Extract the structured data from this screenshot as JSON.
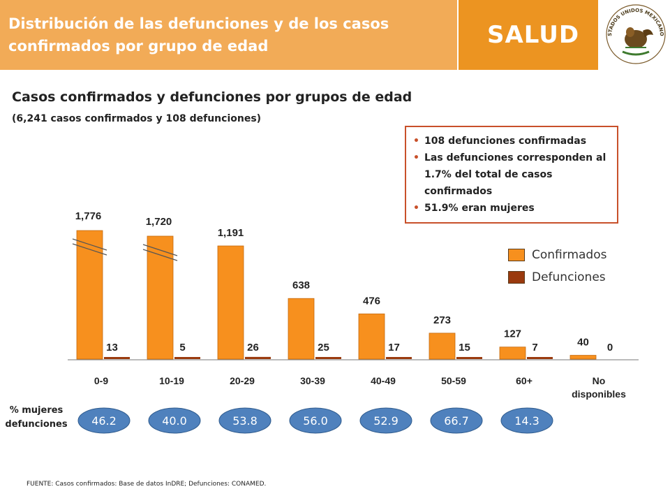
{
  "header": {
    "title": "Distribución de las defunciones y de los  casos confirmados por grupo de edad",
    "brand": "SALUD",
    "seal_text": "ESTADOS UNIDOS MEXICANOS"
  },
  "subtitle": "Casos confirmados y defunciones por grupos de edad",
  "subtitle2": "(6,241 casos confirmados y 108 defunciones)",
  "info_box": {
    "bullets": [
      "108 defunciones confirmadas",
      "Las defunciones corresponden al 1.7% del total de casos confirmados",
      "51.9% eran mujeres"
    ],
    "bullet_color": "#c8502a"
  },
  "pct_label": "% mujeres defunciones",
  "source": "FUENTE: Casos confirmados: Base de datos InDRE; Defunciones: CONAMED.",
  "chart_data": {
    "type": "bar",
    "categories": [
      "0-9",
      "10-19",
      "20-29",
      "30-39",
      "40-49",
      "50-59",
      "60+",
      "No disponibles"
    ],
    "series": [
      {
        "name": "Confirmados",
        "values": [
          1776,
          1720,
          1191,
          638,
          476,
          273,
          127,
          40
        ],
        "labels": [
          "1,776",
          "1,720",
          "1,191",
          "638",
          "476",
          "273",
          "127",
          "40"
        ],
        "color": "#f7901e"
      },
      {
        "name": "Defunciones",
        "values": [
          13,
          5,
          26,
          25,
          17,
          15,
          7,
          0
        ],
        "labels": [
          "13",
          "5",
          "26",
          "25",
          "17",
          "15",
          "7",
          "0"
        ],
        "color": "#9a3a0e"
      }
    ],
    "axis_breaks": [
      "0-9",
      "10-19"
    ],
    "pct_mujeres_defunciones": [
      "46.2",
      "40.0",
      "53.8",
      "56.0",
      "52.9",
      "66.7",
      "14.3"
    ],
    "oval_color": "#4f81bd",
    "legend_position": "right",
    "grid": false
  }
}
